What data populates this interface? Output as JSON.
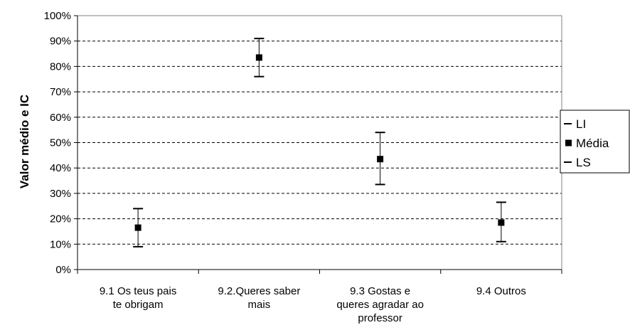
{
  "chart_data": {
    "type": "scatter",
    "ylabel": "Valor médio e IC",
    "xlabel": "",
    "title": "",
    "ylim": [
      0,
      100
    ],
    "y_unit": "%",
    "y_ticks": [
      "0%",
      "10%",
      "20%",
      "30%",
      "40%",
      "50%",
      "60%",
      "70%",
      "80%",
      "90%",
      "100%"
    ],
    "grid": "horizontal dashed",
    "legend_position": "right",
    "categories": [
      [
        "9.1 Os teus pais",
        "te obrigam"
      ],
      [
        "9.2.Queres saber",
        "mais"
      ],
      [
        "9.3 Gostas e",
        "queres agradar ao",
        "professor"
      ],
      [
        "9.4 Outros"
      ]
    ],
    "series": [
      {
        "name": "LI",
        "values": [
          9,
          76,
          33.5,
          11
        ]
      },
      {
        "name": "Média",
        "values": [
          16.5,
          83.5,
          43.5,
          18.5
        ]
      },
      {
        "name": "LS",
        "values": [
          24,
          91,
          54,
          26.5
        ]
      }
    ],
    "legend": [
      "LI",
      "Média",
      "LS"
    ]
  }
}
